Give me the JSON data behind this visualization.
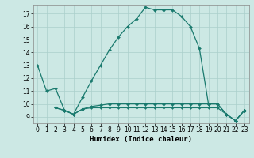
{
  "xlabel": "Humidex (Indice chaleur)",
  "bg_color": "#cce8e4",
  "grid_color": "#aacfcb",
  "line_color": "#1a7a6e",
  "xlim": [
    -0.5,
    23.5
  ],
  "ylim": [
    8.5,
    17.7
  ],
  "yticks": [
    9,
    10,
    11,
    12,
    13,
    14,
    15,
    16,
    17
  ],
  "xticks": [
    0,
    1,
    2,
    3,
    4,
    5,
    6,
    7,
    8,
    9,
    10,
    11,
    12,
    13,
    14,
    15,
    16,
    17,
    18,
    19,
    20,
    21,
    22,
    23
  ],
  "lines": [
    {
      "x": [
        0,
        1,
        2,
        3,
        4,
        5,
        6,
        7,
        8,
        9,
        10,
        11,
        12,
        13,
        14,
        15,
        16,
        17,
        18,
        19,
        20,
        21,
        22,
        23
      ],
      "y": [
        13,
        11,
        11.2,
        9.5,
        9.2,
        10.5,
        11.8,
        13.0,
        14.2,
        15.2,
        16.0,
        16.6,
        17.5,
        17.3,
        17.3,
        17.3,
        16.8,
        16.0,
        14.3,
        10.0,
        10.0,
        9.2,
        8.7,
        9.5
      ]
    },
    {
      "x": [
        2,
        3,
        4,
        5,
        6,
        7,
        8,
        9,
        10,
        11,
        12,
        13,
        14,
        15,
        16,
        17,
        18,
        19,
        20,
        21,
        22,
        23
      ],
      "y": [
        9.7,
        9.5,
        9.2,
        9.6,
        9.7,
        9.7,
        9.7,
        9.7,
        9.7,
        9.7,
        9.7,
        9.7,
        9.7,
        9.7,
        9.7,
        9.7,
        9.7,
        9.7,
        9.7,
        9.2,
        8.7,
        9.5
      ]
    },
    {
      "x": [
        2,
        3,
        4,
        5,
        6,
        7,
        8,
        9,
        10,
        11,
        12,
        13,
        14,
        15,
        16,
        17,
        18,
        19,
        20,
        21,
        22,
        23
      ],
      "y": [
        9.7,
        9.5,
        9.2,
        9.6,
        9.8,
        9.9,
        10.0,
        10.0,
        10.0,
        10.0,
        10.0,
        10.0,
        10.0,
        10.0,
        10.0,
        10.0,
        10.0,
        10.0,
        10.0,
        9.2,
        8.7,
        9.5
      ]
    }
  ]
}
